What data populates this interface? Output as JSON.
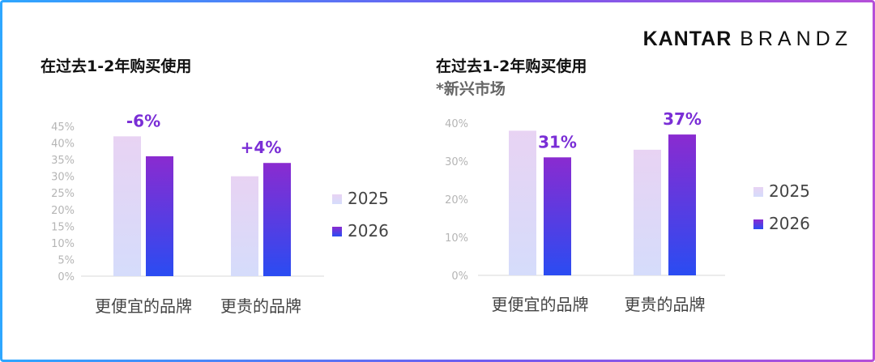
{
  "logo": {
    "part1": "KANTAR",
    "part2": "BRANDZ"
  },
  "colors": {
    "c2025_top": "#e8d3f3",
    "c2025_bottom": "#d5dcfb",
    "c2026_top": "#8a2bd0",
    "c2026_bottom": "#2a4cf2",
    "pct_label": "#7a2ed6"
  },
  "chart_data": [
    {
      "type": "bar",
      "title": "在过去1-2年购买使用",
      "subtitle": "",
      "categories": [
        "更便宜的品牌",
        "更贵的品牌"
      ],
      "series": [
        {
          "name": "2025",
          "values": [
            42,
            30
          ]
        },
        {
          "name": "2026",
          "values": [
            36,
            34
          ]
        }
      ],
      "ylim": [
        0,
        45
      ],
      "yticks": [
        "0%",
        "5%",
        "10%",
        "15%",
        "20%",
        "25%",
        "30%",
        "35%",
        "40%",
        "45%"
      ],
      "change_labels": [
        "-6%",
        "+4%"
      ],
      "legend_position": "right"
    },
    {
      "type": "bar",
      "title": "在过去1-2年购买使用",
      "subtitle": "*新兴市场",
      "categories": [
        "更便宜的品牌",
        "更贵的品牌"
      ],
      "series": [
        {
          "name": "2025",
          "values": [
            38,
            33
          ]
        },
        {
          "name": "2026",
          "values": [
            31,
            37
          ]
        }
      ],
      "ylim": [
        0,
        40
      ],
      "yticks": [
        "0%",
        "10%",
        "20%",
        "30%",
        "40%"
      ],
      "value_labels": [
        "31%",
        "37%"
      ],
      "legend_position": "right"
    }
  ]
}
